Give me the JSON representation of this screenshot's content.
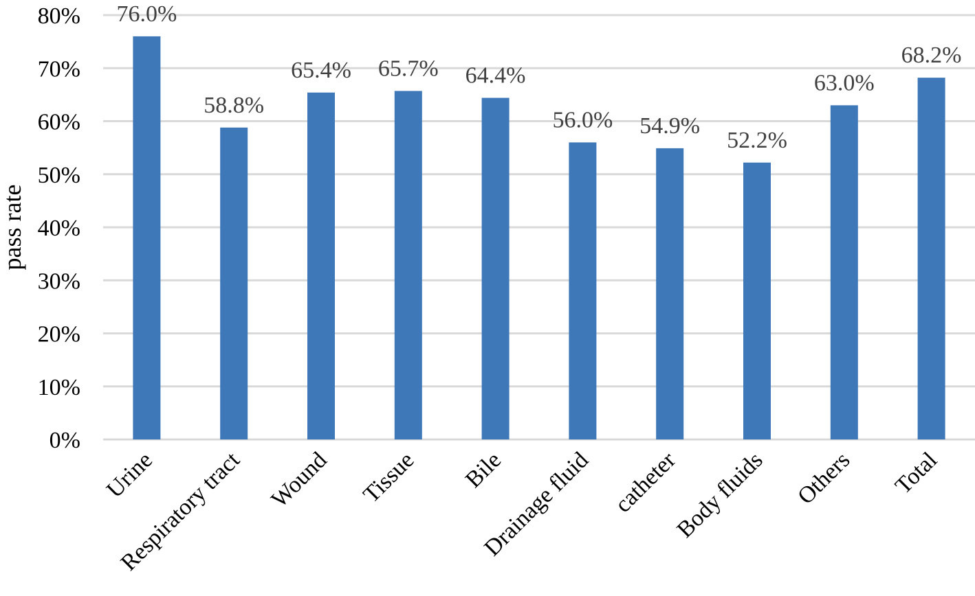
{
  "chart_data": {
    "type": "bar",
    "title": "",
    "xlabel": "",
    "ylabel": "pass rate",
    "categories": [
      "Urine",
      "Respiratory tract",
      "Wound",
      "Tissue",
      "Bile",
      "Drainage fluid",
      "catheter",
      "Body fluids",
      "Others",
      "Total"
    ],
    "values": [
      76.0,
      58.8,
      65.4,
      65.7,
      64.4,
      56.0,
      54.9,
      52.2,
      63.0,
      68.2
    ],
    "data_labels": [
      "76.0%",
      "58.8%",
      "65.4%",
      "65.7%",
      "64.4%",
      "56.0%",
      "54.9%",
      "52.2%",
      "63.0%",
      "68.2%"
    ],
    "y_ticks": [
      "0%",
      "10%",
      "20%",
      "30%",
      "40%",
      "50%",
      "60%",
      "70%",
      "80%"
    ],
    "ylim": [
      0,
      80
    ],
    "grid": true,
    "legend": "none",
    "bar_color": "#3e78b9",
    "grid_color": "#d9d9d9"
  }
}
